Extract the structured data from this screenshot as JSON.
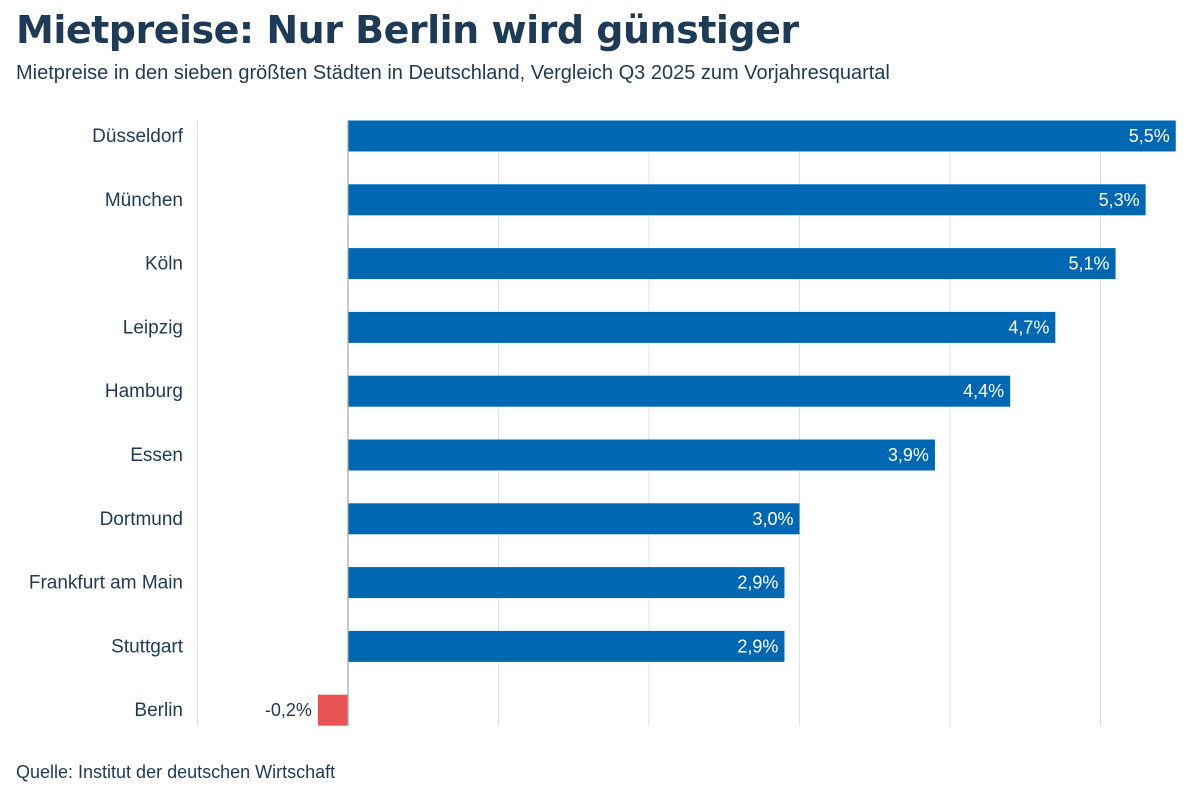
{
  "chart_data": {
    "type": "bar",
    "orientation": "horizontal",
    "title": "Mietpreise: Nur Berlin wird günstiger",
    "subtitle": "Mietpreise in den sieben größten Städten in Deutschland, Vergleich Q3 2025 zum Vorjahresquartal",
    "source": "Quelle: Institut der deutschen Wirtschaft",
    "categories": [
      "Düsseldorf",
      "München",
      "Köln",
      "Leipzig",
      "Hamburg",
      "Essen",
      "Dortmund",
      "Frankfurt am Main",
      "Stuttgart",
      "Berlin"
    ],
    "values": [
      5.5,
      5.3,
      5.1,
      4.7,
      4.4,
      3.9,
      3.0,
      2.9,
      2.9,
      -0.2
    ],
    "data_labels": [
      "5,5%",
      "5,3%",
      "5,1%",
      "4,7%",
      "4,4%",
      "3,9%",
      "3,0%",
      "2,9%",
      "2,9%",
      "-0,2%"
    ],
    "xlim": [
      -1,
      5.5
    ],
    "grid": true,
    "colors": {
      "positive": "#0068b3",
      "negative": "#e85353"
    }
  }
}
